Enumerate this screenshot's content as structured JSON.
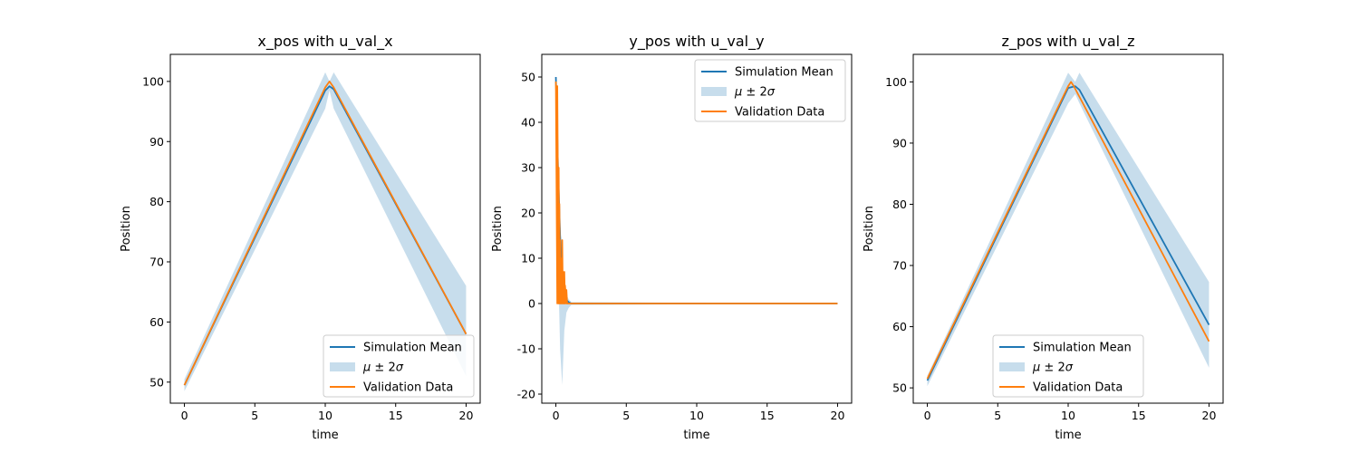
{
  "chart_data": [
    {
      "type": "line",
      "title": "x_pos with u_val_x",
      "xlabel": "time",
      "ylabel": "Position",
      "xlim": [
        -1,
        21
      ],
      "ylim": [
        46.5,
        104.5
      ],
      "xticks": [
        0,
        5,
        10,
        15,
        20
      ],
      "yticks": [
        50,
        60,
        70,
        80,
        90,
        100
      ],
      "legend_position": "lower-right",
      "series": [
        {
          "name": "Simulation Mean",
          "kind": "line",
          "color": "#1f77b4",
          "x": [
            0,
            10,
            10.3,
            10.6,
            20
          ],
          "y": [
            49.5,
            98.5,
            99.2,
            98.7,
            58
          ]
        },
        {
          "name": "$\\mu \\pm 2\\sigma$",
          "kind": "band",
          "color": "#1f77b4",
          "opacity": 0.25,
          "x": [
            0,
            10,
            10.3,
            10.6,
            20
          ],
          "upper": [
            50.5,
            101.5,
            100,
            101.5,
            66
          ],
          "lower": [
            48.5,
            95.5,
            98.5,
            95.5,
            51
          ]
        },
        {
          "name": "Validation Data",
          "kind": "line",
          "color": "#ff7f0e",
          "x": [
            0,
            10,
            10.3,
            10.6,
            20
          ],
          "y": [
            49.5,
            99,
            100,
            99,
            58
          ]
        }
      ]
    },
    {
      "type": "line",
      "title": "y_pos with u_val_y",
      "xlabel": "time",
      "ylabel": "Position",
      "xlim": [
        -1,
        21
      ],
      "ylim": [
        -22,
        55
      ],
      "xticks": [
        0,
        5,
        10,
        15,
        20
      ],
      "yticks": [
        -20,
        -10,
        0,
        10,
        20,
        30,
        40,
        50
      ],
      "legend_position": "upper-right",
      "series": [
        {
          "name": "Simulation Mean",
          "kind": "line",
          "color": "#1f77b4",
          "x": [
            0,
            0.15,
            0.3,
            0.45,
            0.6,
            0.75,
            0.9,
            1.1,
            20
          ],
          "y": [
            50,
            30,
            15,
            6,
            2,
            0.8,
            0.3,
            0,
            0
          ]
        },
        {
          "name": "$\\mu \\pm 2\\sigma$",
          "kind": "band",
          "color": "#1f77b4",
          "opacity": 0.25,
          "x": [
            0,
            0.15,
            0.3,
            0.45,
            0.6,
            0.75,
            0.9,
            1.1,
            20
          ],
          "upper": [
            50.5,
            32,
            18,
            9,
            4,
            2,
            1,
            0.3,
            0
          ],
          "lower": [
            49.5,
            10,
            -10,
            -18,
            -6,
            -2,
            -1,
            -0.3,
            0
          ]
        },
        {
          "name": "Validation Data",
          "kind": "line",
          "color": "#ff7f0e",
          "x": [
            0,
            0.1,
            0.1,
            0.2,
            0.2,
            0.25,
            0.25,
            0.3,
            0.3,
            0.35,
            0.35,
            0.4,
            0.4,
            0.45,
            0.45,
            0.5,
            0.5,
            0.55,
            0.55,
            0.6,
            0.6,
            0.65,
            0.65,
            0.75,
            0.75,
            0.8,
            0.8,
            20
          ],
          "y": [
            49,
            0,
            48,
            0,
            30,
            0,
            22,
            0,
            14,
            0,
            10,
            0,
            8,
            0,
            14,
            0,
            7,
            0,
            5,
            0,
            7,
            0,
            4,
            0,
            3,
            0,
            0,
            0
          ]
        }
      ]
    },
    {
      "type": "line",
      "title": "z_pos with u_val_z",
      "xlabel": "time",
      "ylabel": "Position",
      "xlim": [
        -1,
        21
      ],
      "ylim": [
        47.5,
        104.5
      ],
      "xticks": [
        0,
        5,
        10,
        15,
        20
      ],
      "yticks": [
        50,
        60,
        70,
        80,
        90,
        100
      ],
      "legend_position": "lower-center",
      "series": [
        {
          "name": "Simulation Mean",
          "kind": "line",
          "color": "#1f77b4",
          "x": [
            0,
            10,
            10.5,
            10.8,
            20
          ],
          "y": [
            51.2,
            99,
            99.3,
            98.7,
            60.3
          ]
        },
        {
          "name": "$\\mu \\pm 2\\sigma$",
          "kind": "band",
          "color": "#1f77b4",
          "opacity": 0.25,
          "x": [
            0,
            10,
            10.5,
            10.8,
            20
          ],
          "upper": [
            52,
            101.5,
            100,
            101.5,
            67.3
          ],
          "lower": [
            50.3,
            96.5,
            98,
            96.5,
            53.3
          ]
        },
        {
          "name": "Validation Data",
          "kind": "line",
          "color": "#ff7f0e",
          "x": [
            0,
            10,
            10.2,
            10.4,
            20
          ],
          "y": [
            51.5,
            99.3,
            100,
            99.3,
            57.6
          ]
        }
      ]
    }
  ]
}
